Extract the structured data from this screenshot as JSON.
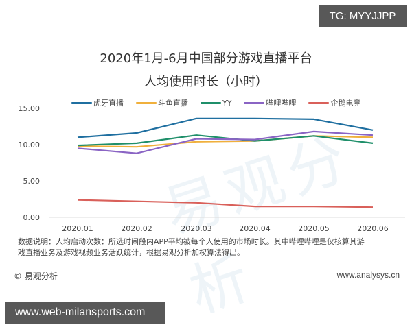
{
  "badges": {
    "top_right": "TG: MYYJJPP",
    "bottom_left": "www.web-milansports.com"
  },
  "watermark": "易观分析",
  "chart_data": {
    "type": "line",
    "title": "2020年1月-6月中国部分游戏直播平台",
    "subtitle": "人均使用时长（小时）",
    "xlabel": "",
    "ylabel": "",
    "categories": [
      "2020.01",
      "2020.02",
      "2020.03",
      "2020.04",
      "2020.05",
      "2020.06"
    ],
    "yticks": [
      "15.00",
      "10.00",
      "5.00",
      "0.00"
    ],
    "ylim": [
      0,
      15
    ],
    "grid": false,
    "legend_position": "top",
    "series": [
      {
        "name": "虎牙直播",
        "color": "#1f6fa0",
        "values": [
          11.0,
          11.6,
          13.6,
          13.6,
          13.5,
          12.0
        ]
      },
      {
        "name": "斗鱼直播",
        "color": "#f0b03c",
        "values": [
          9.8,
          9.7,
          10.4,
          10.5,
          11.2,
          11.0
        ]
      },
      {
        "name": "YY",
        "color": "#1f8f6a",
        "values": [
          9.9,
          10.2,
          11.3,
          10.5,
          11.2,
          10.2
        ]
      },
      {
        "name": "哔哩哔哩",
        "color": "#8a64c4",
        "values": [
          9.5,
          8.8,
          10.8,
          10.7,
          11.8,
          11.3
        ]
      },
      {
        "name": "企鹅电竞",
        "color": "#d9605a",
        "values": [
          2.4,
          2.2,
          2.0,
          1.5,
          1.5,
          1.4
        ]
      }
    ]
  },
  "note": {
    "line1": "数据说明：人均启动次数：所选时间段内APP平均被每个人使用的市场时长。其中哔哩哔哩是仅核算其游",
    "line2": "戏直播业务及游戏视频业务活跃统计，根据易观分析加权算法得出。"
  },
  "footer": {
    "copyright": "© 易观分析",
    "site": "www.analysys.cn"
  }
}
